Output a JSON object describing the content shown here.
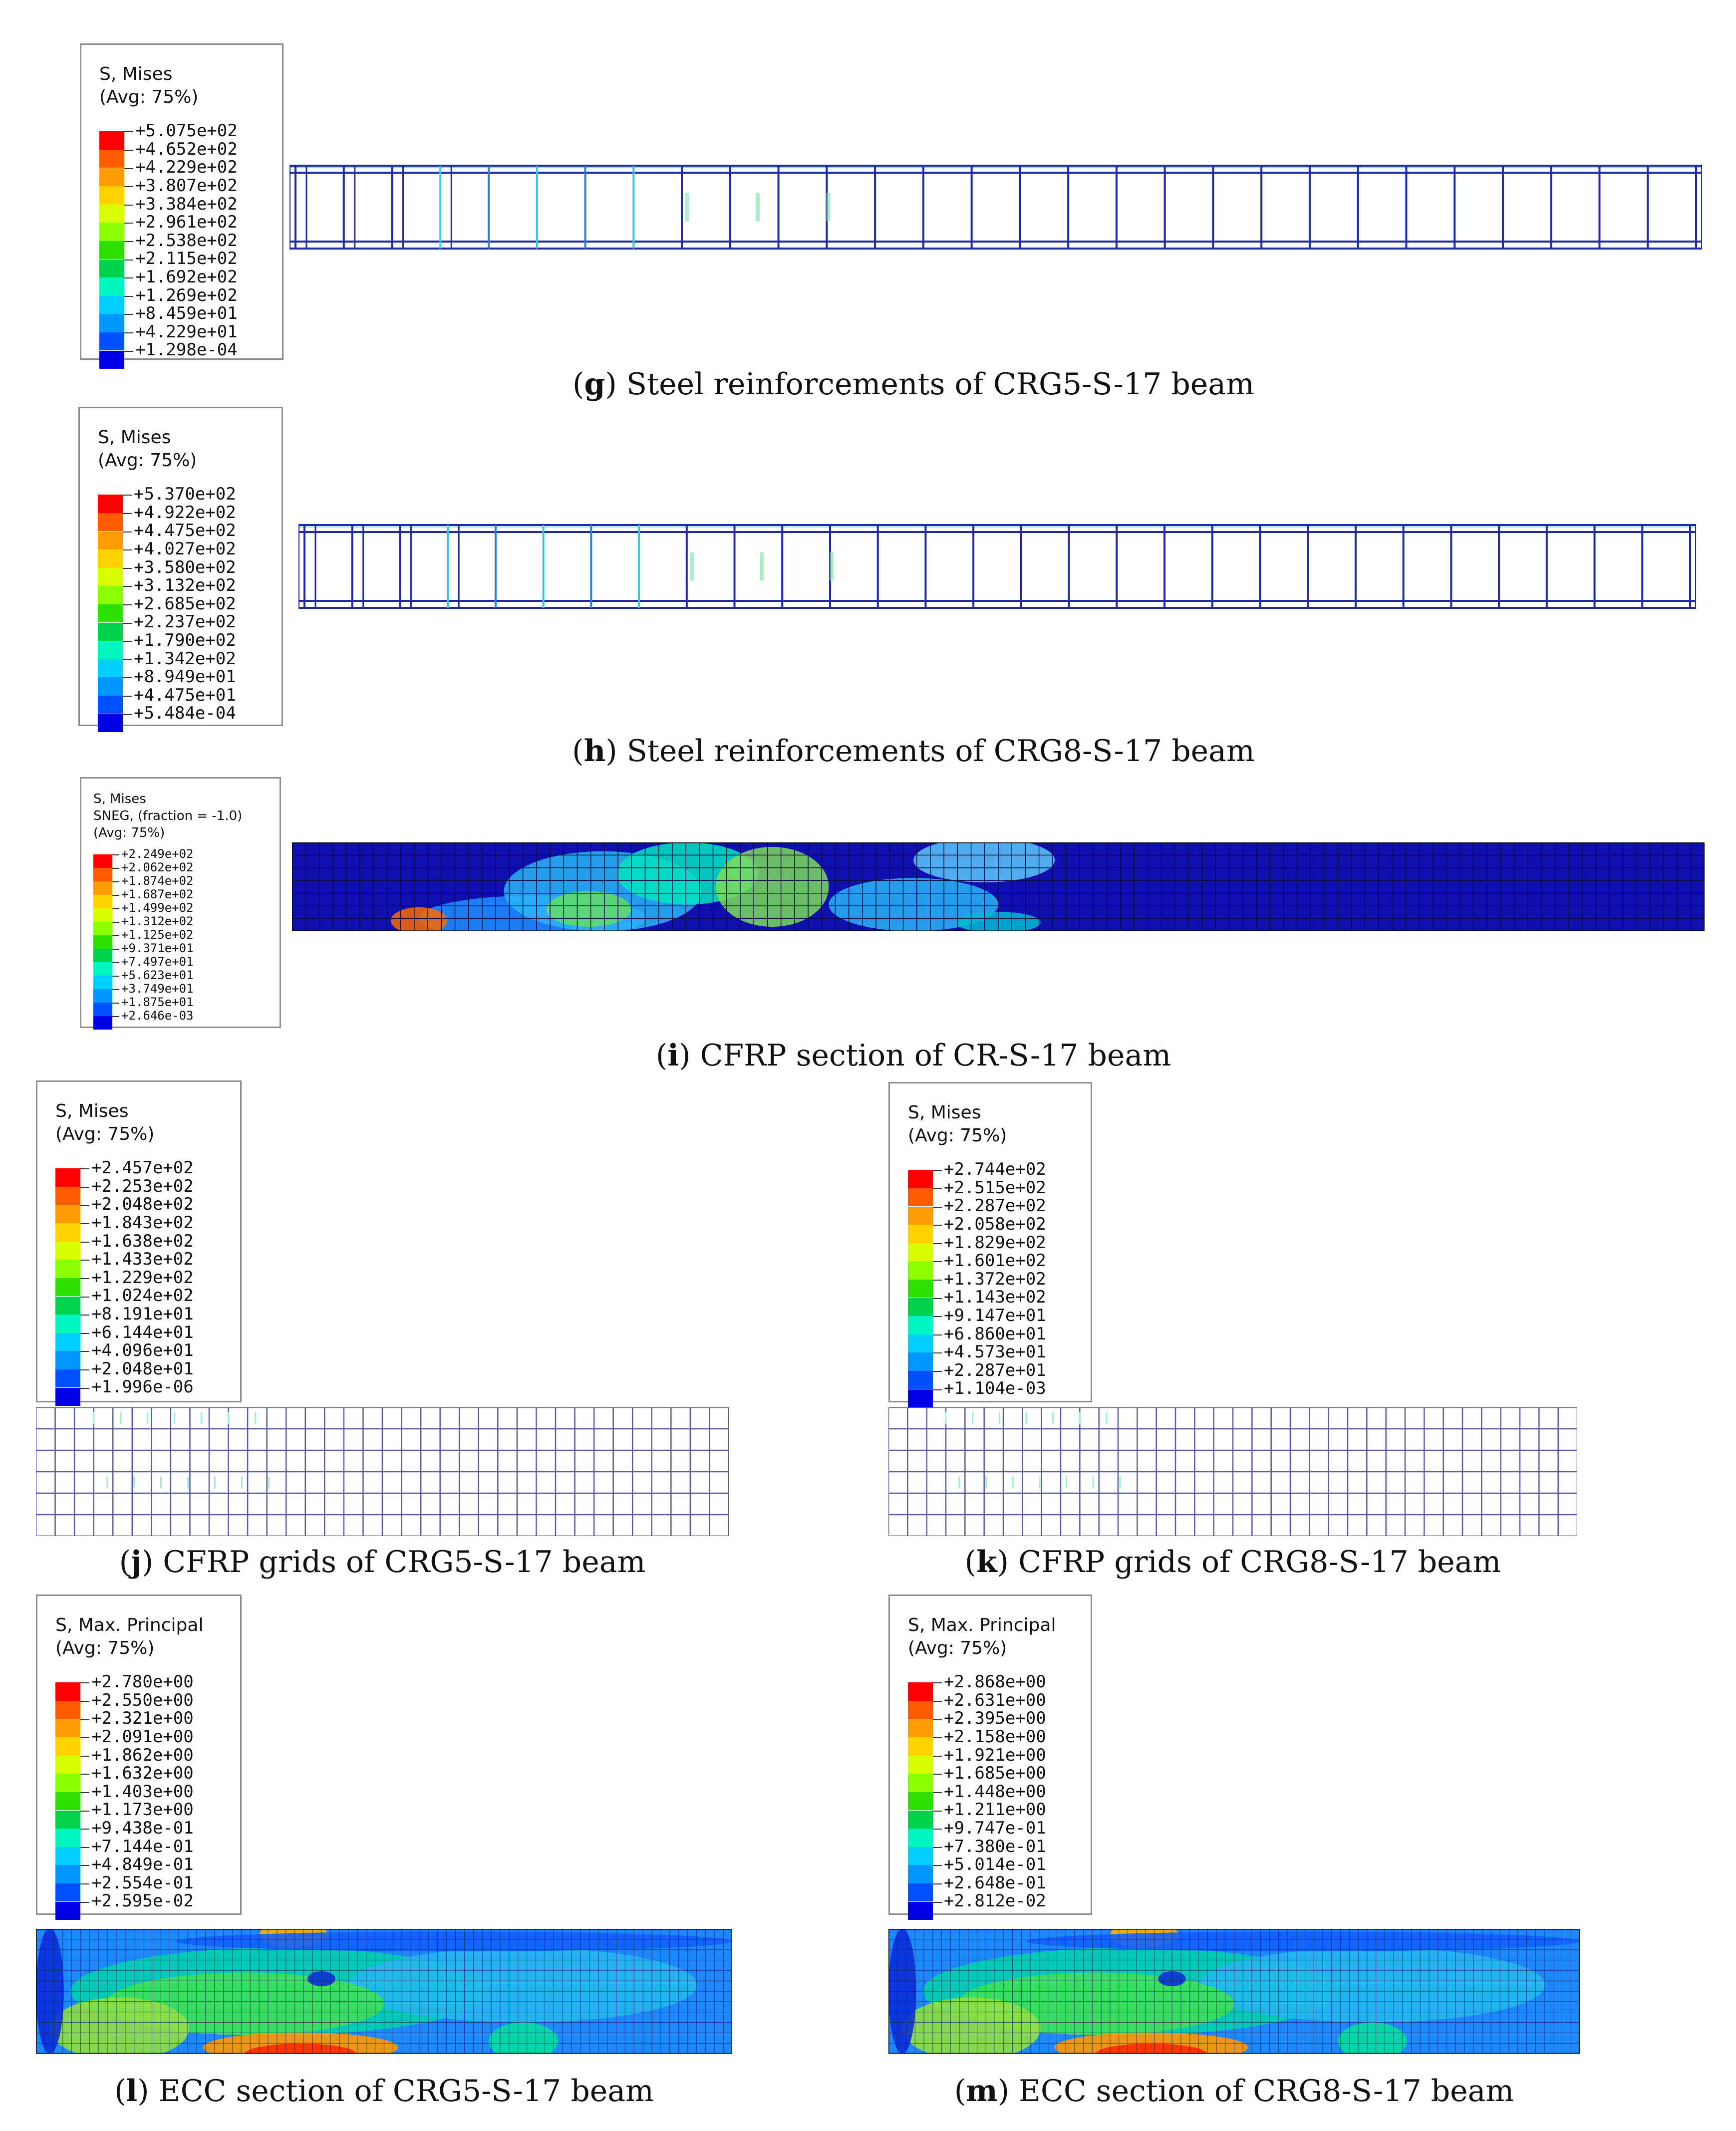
{
  "panels": [
    {
      "id": "g",
      "caption_letter": "g",
      "caption_text": "Steel reinforcements of CRG5-S-17 beam",
      "legend_title": [
        "S, Mises",
        "(Avg: 75%)"
      ],
      "legend_values": [
        "+5.075e+02",
        "+4.652e+02",
        "+4.229e+02",
        "+3.807e+02",
        "+3.384e+02",
        "+2.961e+02",
        "+2.538e+02",
        "+2.115e+02",
        "+1.692e+02",
        "+1.269e+02",
        "+8.459e+01",
        "+4.229e+01",
        "+1.298e-04"
      ]
    },
    {
      "id": "h",
      "caption_letter": "h",
      "caption_text": "Steel reinforcements of CRG8-S-17 beam",
      "legend_title": [
        "S, Mises",
        "(Avg: 75%)"
      ],
      "legend_values": [
        "+5.370e+02",
        "+4.922e+02",
        "+4.475e+02",
        "+4.027e+02",
        "+3.580e+02",
        "+3.132e+02",
        "+2.685e+02",
        "+2.237e+02",
        "+1.790e+02",
        "+1.342e+02",
        "+8.949e+01",
        "+4.475e+01",
        "+5.484e-04"
      ]
    },
    {
      "id": "i",
      "caption_letter": "i",
      "caption_text": "CFRP section of CR-S-17 beam",
      "legend_title": [
        "S, Mises",
        "SNEG, (fraction = -1.0)",
        "(Avg: 75%)"
      ],
      "legend_values": [
        "+2.249e+02",
        "+2.062e+02",
        "+1.874e+02",
        "+1.687e+02",
        "+1.499e+02",
        "+1.312e+02",
        "+1.125e+02",
        "+9.371e+01",
        "+7.497e+01",
        "+5.623e+01",
        "+3.749e+01",
        "+1.875e+01",
        "+2.646e-03"
      ]
    },
    {
      "id": "j",
      "caption_letter": "j",
      "caption_text": "CFRP grids of CRG5-S-17 beam",
      "legend_title": [
        "S, Mises",
        "(Avg: 75%)"
      ],
      "legend_values": [
        "+2.457e+02",
        "+2.253e+02",
        "+2.048e+02",
        "+1.843e+02",
        "+1.638e+02",
        "+1.433e+02",
        "+1.229e+02",
        "+1.024e+02",
        "+8.191e+01",
        "+6.144e+01",
        "+4.096e+01",
        "+2.048e+01",
        "+1.996e-06"
      ]
    },
    {
      "id": "k",
      "caption_letter": "k",
      "caption_text": "CFRP grids of CRG8-S-17 beam",
      "legend_title": [
        "S, Mises",
        "(Avg: 75%)"
      ],
      "legend_values": [
        "+2.744e+02",
        "+2.515e+02",
        "+2.287e+02",
        "+2.058e+02",
        "+1.829e+02",
        "+1.601e+02",
        "+1.372e+02",
        "+1.143e+02",
        "+9.147e+01",
        "+6.860e+01",
        "+4.573e+01",
        "+2.287e+01",
        "+1.104e-03"
      ]
    },
    {
      "id": "l",
      "caption_letter": "l",
      "caption_text": "ECC section of CRG5-S-17 beam",
      "legend_title": [
        "S, Max. Principal",
        "(Avg: 75%)"
      ],
      "legend_values": [
        "+2.780e+00",
        "+2.550e+00",
        "+2.321e+00",
        "+2.091e+00",
        "+1.862e+00",
        "+1.632e+00",
        "+1.403e+00",
        "+1.173e+00",
        "+9.438e-01",
        "+7.144e-01",
        "+4.849e-01",
        "+2.554e-01",
        "+2.595e-02"
      ]
    },
    {
      "id": "m",
      "caption_letter": "m",
      "caption_text": "ECC section of CRG8-S-17 beam",
      "legend_title": [
        "S, Max. Principal",
        "(Avg: 75%)"
      ],
      "legend_values": [
        "+2.868e+00",
        "+2.631e+00",
        "+2.395e+00",
        "+2.158e+00",
        "+1.921e+00",
        "+1.685e+00",
        "+1.448e+00",
        "+1.211e+00",
        "+9.747e-01",
        "+7.380e-01",
        "+5.014e-01",
        "+2.648e-01",
        "+2.812e-02"
      ]
    }
  ],
  "contour_colors": [
    "#ff0000",
    "#ff5a00",
    "#ff9c00",
    "#ffd200",
    "#d8ff00",
    "#8cff00",
    "#2ee000",
    "#00d24a",
    "#00f5c0",
    "#00cfff",
    "#0096ff",
    "#0050ff",
    "#0000e8"
  ],
  "mesh_line_color": "#1a1a7a",
  "rebar_color": "#1f2aa8"
}
